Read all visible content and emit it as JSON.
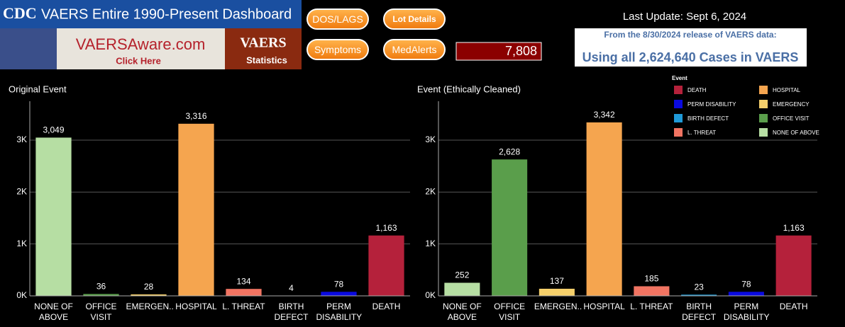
{
  "header": {
    "logo": "CDC",
    "title": "VAERS Entire 1990-Present Dashboard",
    "banner": "VAERSAware.com",
    "banner_sub": "Click Here",
    "badge": "VAERS",
    "badge_sub": "Statistics",
    "buttons": [
      "DOS/LAGS",
      "Lot Details",
      "Symptoms",
      "MedAlerts"
    ],
    "count": "7,808",
    "last_update": "Last Update: Sept 6, 2024",
    "release": "From the 8/30/2024 release of VAERS data:",
    "cases": "Using all 2,624,640 Cases in VAERS"
  },
  "legend": {
    "title": "Event",
    "items": [
      {
        "name": "DEATH",
        "color": "#b5213b"
      },
      {
        "name": "HOSPITAL",
        "color": "#f5a54f"
      },
      {
        "name": "PERM DISABILITY",
        "color": "#0a0ae0"
      },
      {
        "name": "EMERGENCY",
        "color": "#f6d06b"
      },
      {
        "name": "BIRTH DEFECT",
        "color": "#1f9ad8"
      },
      {
        "name": "OFFICE VISIT",
        "color": "#5a9e4b"
      },
      {
        "name": "L. THREAT",
        "color": "#f17462"
      },
      {
        "name": "NONE OF ABOVE",
        "color": "#b6dea3"
      }
    ]
  },
  "chart_data": [
    {
      "type": "bar",
      "title": "Original Event",
      "categories": [
        "NONE OF ABOVE",
        "OFFICE VISIT",
        "EMERGEN..",
        "HOSPITAL",
        "L. THREAT",
        "BIRTH DEFECT",
        "PERM DISABILITY",
        "DEATH"
      ],
      "values": [
        3049,
        36,
        28,
        3316,
        134,
        4,
        78,
        1163
      ],
      "value_labels": [
        "3,049",
        "36",
        "28",
        "3,316",
        "134",
        "4",
        "78",
        "1,163"
      ],
      "colors": [
        "#b6dea3",
        "#5a9e4b",
        "#f6d06b",
        "#f5a54f",
        "#f17462",
        "#1f9ad8",
        "#0a0ae0",
        "#b5213b"
      ],
      "ylim": [
        0,
        3750
      ],
      "yticks": [
        {
          "value": 0,
          "label": "0K"
        },
        {
          "value": 1000,
          "label": "1K"
        },
        {
          "value": 2000,
          "label": "2K"
        },
        {
          "value": 3000,
          "label": "3K"
        }
      ],
      "grid": true
    },
    {
      "type": "bar",
      "title": "Event (Ethically Cleaned)",
      "categories": [
        "NONE OF ABOVE",
        "OFFICE VISIT",
        "EMERGEN..",
        "HOSPITAL",
        "L. THREAT",
        "BIRTH DEFECT",
        "PERM DISABILITY",
        "DEATH"
      ],
      "values": [
        252,
        2628,
        137,
        3342,
        185,
        23,
        78,
        1163
      ],
      "value_labels": [
        "252",
        "2,628",
        "137",
        "3,342",
        "185",
        "23",
        "78",
        "1,163"
      ],
      "colors": [
        "#b6dea3",
        "#5a9e4b",
        "#f6d06b",
        "#f5a54f",
        "#f17462",
        "#1f9ad8",
        "#0a0ae0",
        "#b5213b"
      ],
      "ylim": [
        0,
        3750
      ],
      "yticks": [
        {
          "value": 0,
          "label": "0K"
        },
        {
          "value": 1000,
          "label": "1K"
        },
        {
          "value": 2000,
          "label": "2K"
        },
        {
          "value": 3000,
          "label": "3K"
        }
      ],
      "grid": true
    }
  ]
}
